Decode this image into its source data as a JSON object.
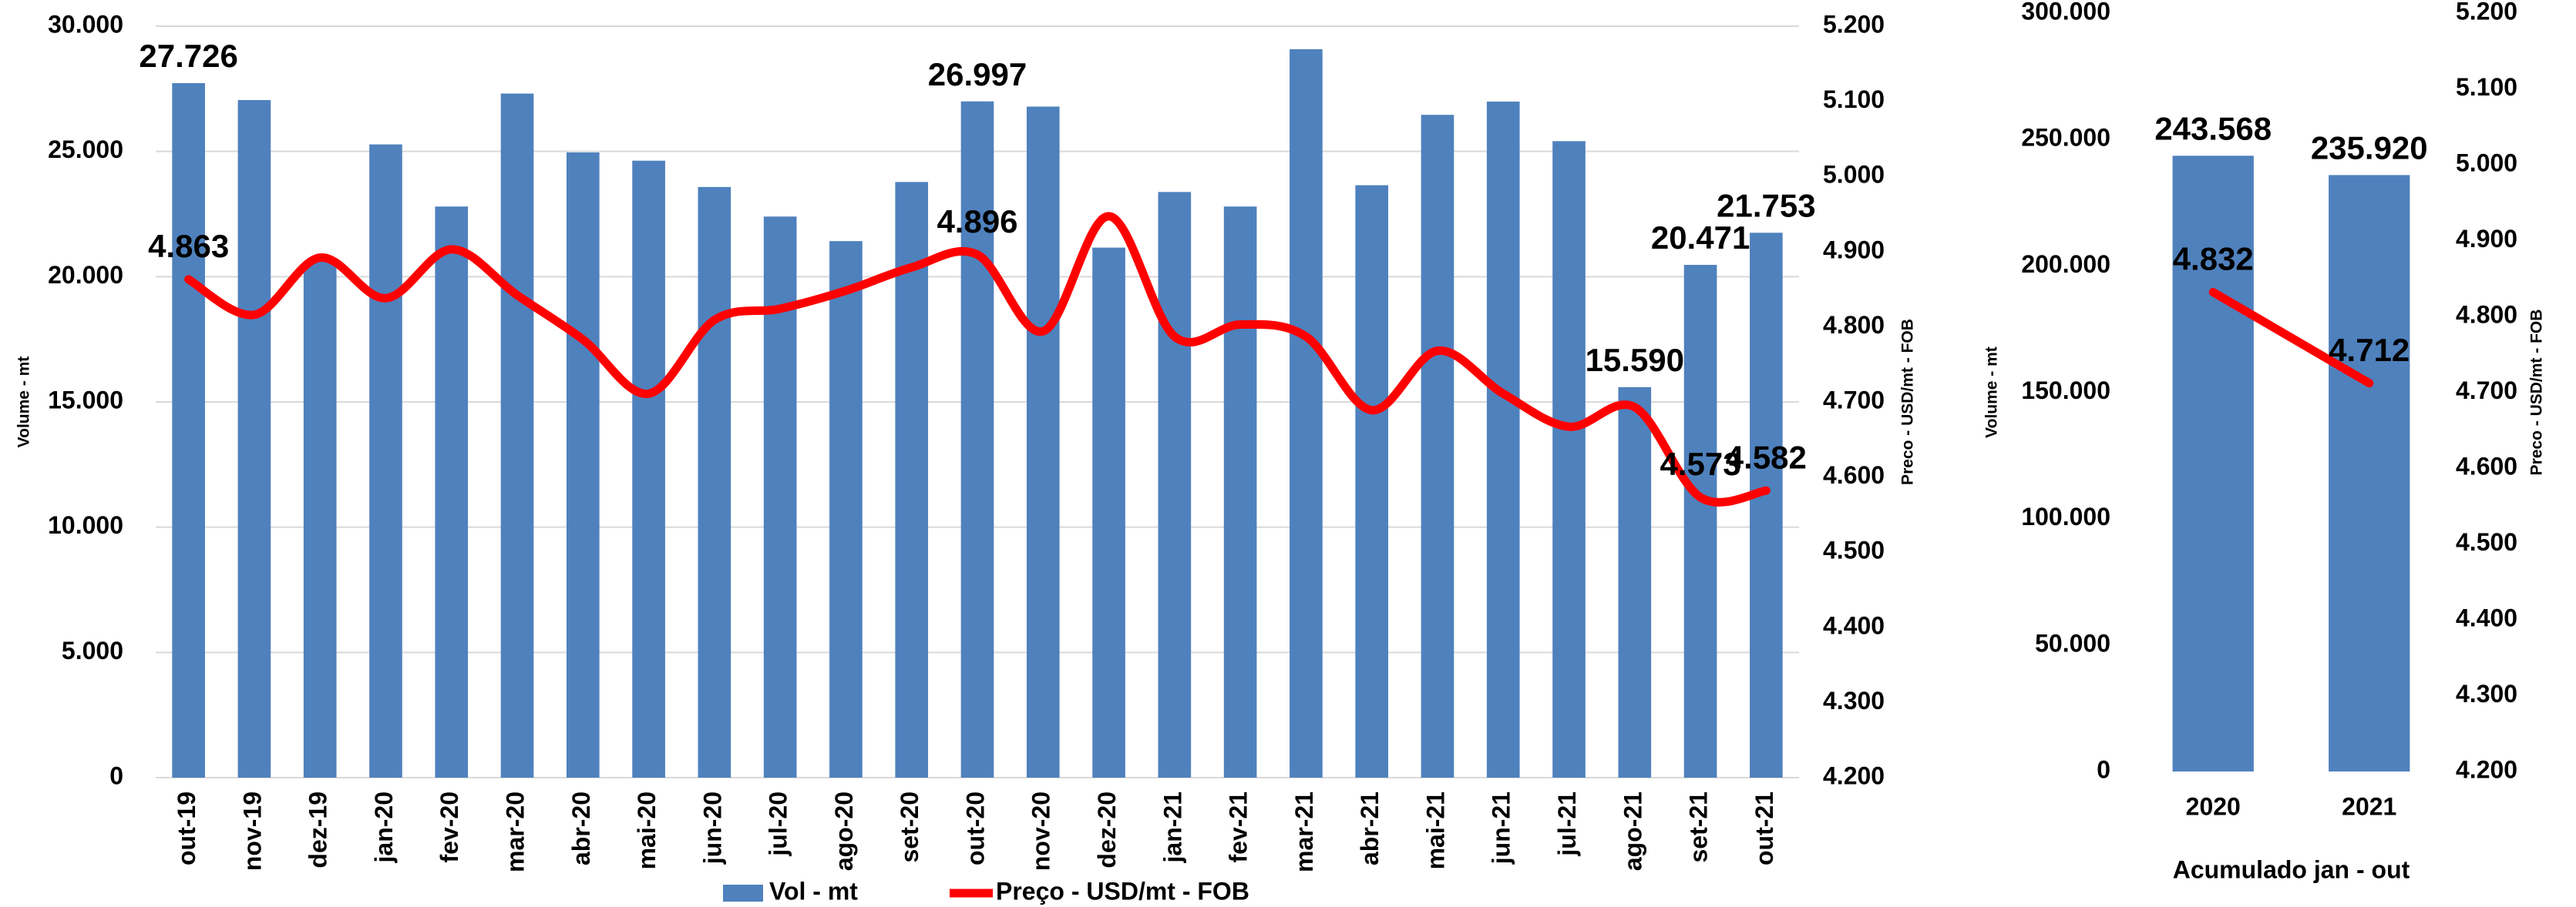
{
  "chart_data": [
    {
      "type": "bar",
      "categories": [
        "out-19",
        "nov-19",
        "dez-19",
        "jan-20",
        "fev-20",
        "mar-20",
        "abr-20",
        "mai-20",
        "jun-20",
        "jul-20",
        "ago-20",
        "set-20",
        "out-20",
        "nov-20",
        "dez-20",
        "jan-21",
        "fev-21",
        "mar-21",
        "abr-21",
        "mai-21",
        "jun-21",
        "jul-21",
        "ago-21",
        "set-21",
        "out-21"
      ],
      "series": [
        {
          "name": "Vol - mt",
          "type": "bar",
          "color": "#4f81bd",
          "values": [
            27726,
            27050,
            20600,
            25280,
            22800,
            27310,
            24960,
            24630,
            23580,
            22400,
            21420,
            23780,
            26997,
            26790,
            21160,
            23380,
            22800,
            29080,
            23650,
            26460,
            26990,
            25410,
            15590,
            20471,
            21753
          ],
          "value_labels": [
            "27.726",
            null,
            null,
            null,
            null,
            null,
            null,
            null,
            null,
            null,
            null,
            null,
            "26.997",
            null,
            null,
            null,
            null,
            null,
            null,
            null,
            null,
            null,
            "15.590",
            "20.471",
            "21.753"
          ]
        },
        {
          "name": "Preço - USD/mt - FOB",
          "type": "line",
          "axis": "y2",
          "color": "#ff0000",
          "values": [
            4863,
            4816,
            4892,
            4838,
            4903,
            4842,
            4783,
            4711,
            4809,
            4824,
            4848,
            4879,
            4896,
            4794,
            4947,
            4787,
            4803,
            4787,
            4689,
            4768,
            4711,
            4667,
            4693,
            4573,
            4582
          ],
          "value_labels": [
            "4.863",
            null,
            null,
            null,
            null,
            null,
            null,
            null,
            null,
            null,
            null,
            null,
            "4.896",
            null,
            null,
            null,
            null,
            null,
            null,
            null,
            null,
            null,
            null,
            "4.573",
            "4.582"
          ]
        }
      ],
      "y_label": "Volume - mt",
      "y2_label": "Preco - USD/mt - FOB",
      "ylim": [
        0,
        30000
      ],
      "yticks": [
        0,
        {
          "value": 5000,
          "label": "5.000"
        },
        {
          "value": 10000,
          "label": "10.000"
        },
        {
          "value": 15000,
          "label": "15.000"
        },
        {
          "value": 20000,
          "label": "20.000"
        },
        {
          "value": 25000,
          "label": "25.000"
        },
        {
          "value": 30000,
          "label": "30.000"
        }
      ],
      "y2lim": [
        4200,
        5200
      ],
      "y2ticks": [
        {
          "value": 4200,
          "label": "4.200"
        },
        {
          "value": 4300,
          "label": "4.300"
        },
        {
          "value": 4400,
          "label": "4.400"
        },
        {
          "value": 4500,
          "label": "4.500"
        },
        {
          "value": 4600,
          "label": "4.600"
        },
        {
          "value": 4700,
          "label": "4.700"
        },
        {
          "value": 4800,
          "label": "4.800"
        },
        {
          "value": 4900,
          "label": "4.900"
        },
        {
          "value": 5000,
          "label": "5.000"
        },
        {
          "value": 5100,
          "label": "5.100"
        },
        {
          "value": 5200,
          "label": "5.200"
        }
      ],
      "grid": true,
      "legend": "bottom"
    },
    {
      "type": "bar",
      "categories": [
        "2020",
        "2021"
      ],
      "x_label": "Acumulado jan - out",
      "series": [
        {
          "name": "Vol - mt",
          "type": "bar",
          "color": "#4f81bd",
          "values": [
            243568,
            235920
          ],
          "value_labels": [
            "243.568",
            "235.920"
          ]
        },
        {
          "name": "Preço - USD/mt - FOB",
          "type": "line",
          "axis": "y2",
          "color": "#ff0000",
          "values": [
            4832,
            4712
          ],
          "value_labels": [
            "4.832",
            "4.712"
          ]
        }
      ],
      "y_label": "Volume - mt",
      "y2_label": "Preco - USD/mt - FOB",
      "ylim": [
        0,
        300000
      ],
      "yticks": [
        0,
        {
          "value": 50000,
          "label": "50.000"
        },
        {
          "value": 100000,
          "label": "100.000"
        },
        {
          "value": 150000,
          "label": "150.000"
        },
        {
          "value": 200000,
          "label": "200.000"
        },
        {
          "value": 250000,
          "label": "250.000"
        },
        {
          "value": 300000,
          "label": "300.000"
        }
      ],
      "y2lim": [
        4200,
        5200
      ],
      "y2ticks": [
        {
          "value": 4200,
          "label": "4.200"
        },
        {
          "value": 4300,
          "label": "4.300"
        },
        {
          "value": 4400,
          "label": "4.400"
        },
        {
          "value": 4500,
          "label": "4.500"
        },
        {
          "value": 4600,
          "label": "4.600"
        },
        {
          "value": 4700,
          "label": "4.700"
        },
        {
          "value": 4800,
          "label": "4.800"
        },
        {
          "value": 4900,
          "label": "4.900"
        },
        {
          "value": 5000,
          "label": "5.000"
        },
        {
          "value": 5100,
          "label": "5.100"
        },
        {
          "value": 5200,
          "label": "5.200"
        }
      ],
      "grid": false
    }
  ]
}
